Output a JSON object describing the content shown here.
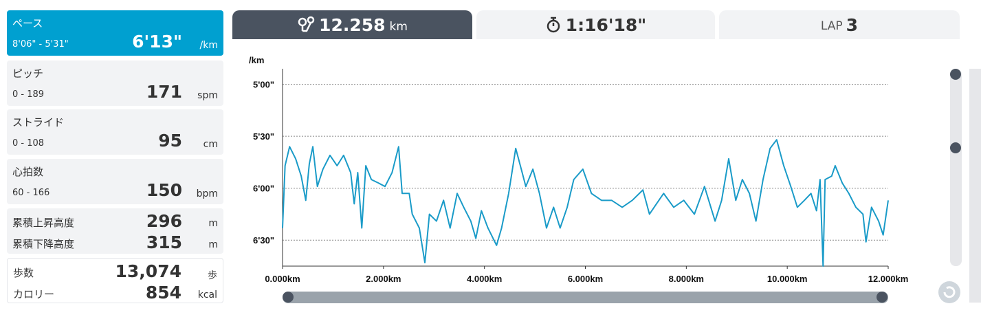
{
  "sidebar": {
    "metrics": [
      {
        "label": "ペース",
        "range": "8'06\" - 5'31\"",
        "value": "6'13\"",
        "unit": "/km"
      },
      {
        "label": "ピッチ",
        "range": "0 - 189",
        "value": "171",
        "unit": "spm"
      },
      {
        "label": "ストライド",
        "range": "0 - 108",
        "value": "95",
        "unit": "cm"
      },
      {
        "label": "心拍数",
        "range": "60 - 166",
        "value": "150",
        "unit": "bpm"
      }
    ],
    "elevation": [
      {
        "label": "累積上昇高度",
        "value": "296",
        "unit": "m"
      },
      {
        "label": "累積下降高度",
        "value": "315",
        "unit": "m"
      }
    ],
    "activity": [
      {
        "label": "歩数",
        "value": "13,074",
        "unit": "歩"
      },
      {
        "label": "カロリー",
        "value": "854",
        "unit": "kcal"
      }
    ]
  },
  "tabs": {
    "distance": {
      "value": "12.258",
      "unit": "km"
    },
    "time": {
      "value": "1:16'18\""
    },
    "lap": {
      "label": "LAP",
      "value": "3"
    }
  },
  "chart_data": {
    "type": "line",
    "y_axis_label": "/km",
    "y_inverted": true,
    "ylim": [
      291,
      405
    ],
    "yticks": [
      {
        "value": 300,
        "label": "5'00\""
      },
      {
        "value": 330,
        "label": "5'30\""
      },
      {
        "value": 360,
        "label": "6'00\""
      },
      {
        "value": 390,
        "label": "6'30\""
      }
    ],
    "xlim": [
      0,
      12
    ],
    "xticks": [
      {
        "value": 0,
        "label": "0.000km"
      },
      {
        "value": 2,
        "label": "2.000km"
      },
      {
        "value": 4,
        "label": "4.000km"
      },
      {
        "value": 6,
        "label": "6.000km"
      },
      {
        "value": 8,
        "label": "8.000km"
      },
      {
        "value": 10,
        "label": "10.000km"
      },
      {
        "value": 12,
        "label": "12.000km"
      }
    ],
    "grid": true,
    "x": [
      0,
      0.05,
      0.14,
      0.26,
      0.37,
      0.46,
      0.53,
      0.6,
      0.69,
      0.8,
      0.94,
      1.08,
      1.21,
      1.35,
      1.42,
      1.49,
      1.57,
      1.65,
      1.76,
      1.9,
      2.03,
      2.17,
      2.3,
      2.37,
      2.51,
      2.57,
      2.71,
      2.82,
      2.91,
      3.05,
      3.19,
      3.32,
      3.46,
      3.59,
      3.73,
      3.83,
      3.94,
      4.07,
      4.24,
      4.34,
      4.48,
      4.62,
      4.73,
      4.82,
      4.96,
      5.09,
      5.23,
      5.37,
      5.5,
      5.64,
      5.77,
      5.95,
      6.12,
      6.32,
      6.52,
      6.73,
      6.93,
      7.14,
      7.27,
      7.41,
      7.55,
      7.75,
      7.95,
      8.16,
      8.36,
      8.57,
      8.7,
      8.84,
      8.98,
      9.11,
      9.25,
      9.38,
      9.52,
      9.66,
      9.79,
      9.93,
      10.07,
      10.2,
      10.34,
      10.47,
      10.58,
      10.65,
      10.71,
      10.75,
      10.88,
      10.95,
      11.09,
      11.22,
      11.36,
      11.5,
      11.56,
      11.67,
      11.81,
      11.9,
      12.0
    ],
    "series": [
      {
        "color": "#1a9bc8",
        "values": [
          383,
          347,
          336,
          343,
          353,
          367,
          346,
          336,
          359,
          349,
          341,
          347,
          341,
          351,
          369,
          351,
          383,
          347,
          355,
          357,
          359,
          351,
          336,
          363,
          363,
          375,
          383,
          403,
          375,
          379,
          367,
          383,
          363,
          371,
          379,
          389,
          373,
          383,
          393,
          383,
          363,
          337,
          349,
          359,
          349,
          363,
          383,
          371,
          383,
          371,
          355,
          349,
          363,
          367,
          367,
          371,
          367,
          361,
          375,
          369,
          363,
          371,
          367,
          375,
          359,
          379,
          367,
          343,
          367,
          355,
          363,
          379,
          355,
          337,
          332,
          347,
          359,
          371,
          367,
          363,
          373,
          355,
          405,
          355,
          353,
          347,
          357,
          363,
          371,
          375,
          391,
          371,
          379,
          387,
          367
        ]
      }
    ]
  }
}
